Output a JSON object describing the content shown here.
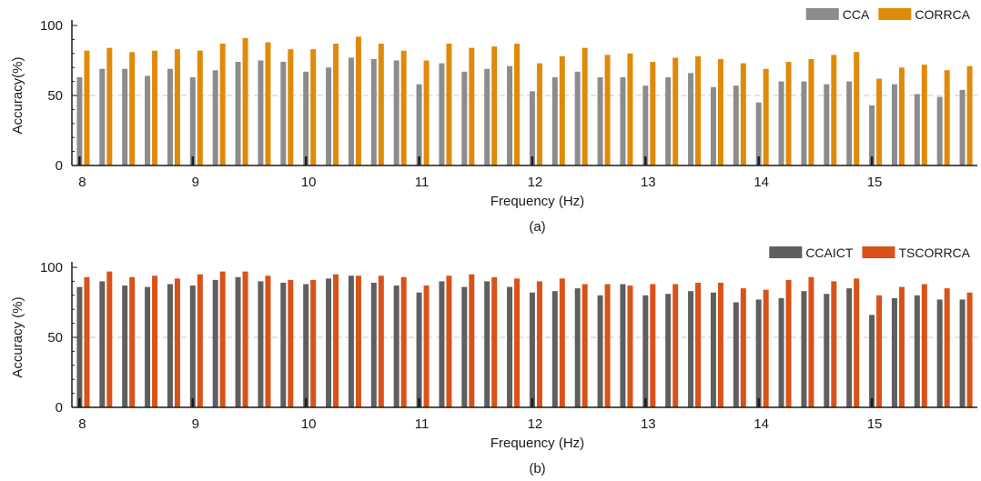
{
  "chart_data": [
    {
      "id": "a",
      "type": "bar",
      "caption": "(a)",
      "xlabel": "Frequency (Hz)",
      "ylabel": "Accuracy(%)",
      "ylim": [
        0,
        100
      ],
      "yticks": [
        0,
        50,
        100
      ],
      "gridlines": [
        50
      ],
      "xlim": [
        7.9,
        15.9
      ],
      "xticks": [
        8,
        9,
        10,
        11,
        12,
        13,
        14,
        15
      ],
      "legend_position": "top-right",
      "frequencies": [
        8,
        8.2,
        8.4,
        8.6,
        8.8,
        9,
        9.2,
        9.4,
        9.6,
        9.8,
        10,
        10.2,
        10.4,
        10.6,
        10.8,
        11,
        11.2,
        11.4,
        11.6,
        11.8,
        12,
        12.2,
        12.4,
        12.6,
        12.8,
        13,
        13.2,
        13.4,
        13.6,
        13.8,
        14,
        14.2,
        14.4,
        14.6,
        14.8,
        15,
        15.2,
        15.4,
        15.6,
        15.8
      ],
      "series": [
        {
          "name": "CCA",
          "color": "#8c8c8c",
          "values": [
            63,
            69,
            69,
            64,
            69,
            63,
            68,
            74,
            75,
            74,
            67,
            70,
            77,
            76,
            75,
            58,
            73,
            67,
            69,
            71,
            53,
            63,
            67,
            63,
            63,
            57,
            63,
            66,
            56,
            57,
            45,
            60,
            60,
            58,
            60,
            43,
            58,
            51,
            49,
            54
          ]
        },
        {
          "name": "CORRCA",
          "color": "#e08a0b",
          "values": [
            82,
            84,
            81,
            82,
            83,
            82,
            87,
            91,
            88,
            83,
            83,
            87,
            92,
            87,
            82,
            75,
            87,
            84,
            85,
            87,
            73,
            78,
            84,
            79,
            80,
            74,
            77,
            78,
            76,
            73,
            69,
            74,
            76,
            79,
            81,
            62,
            70,
            72,
            68,
            71
          ]
        }
      ]
    },
    {
      "id": "b",
      "type": "bar",
      "caption": "(b)",
      "xlabel": "Frequency (Hz)",
      "ylabel": "Accuracy (%)",
      "ylim": [
        0,
        100
      ],
      "yticks": [
        0,
        50,
        100
      ],
      "gridlines": [
        50
      ],
      "xlim": [
        7.9,
        15.9
      ],
      "xticks": [
        8,
        9,
        10,
        11,
        12,
        13,
        14,
        15
      ],
      "legend_position": "top-right",
      "frequencies": [
        8,
        8.2,
        8.4,
        8.6,
        8.8,
        9,
        9.2,
        9.4,
        9.6,
        9.8,
        10,
        10.2,
        10.4,
        10.6,
        10.8,
        11,
        11.2,
        11.4,
        11.6,
        11.8,
        12,
        12.2,
        12.4,
        12.6,
        12.8,
        13,
        13.2,
        13.4,
        13.6,
        13.8,
        14,
        14.2,
        14.4,
        14.6,
        14.8,
        15,
        15.2,
        15.4,
        15.6,
        15.8
      ],
      "series": [
        {
          "name": "CCAICT",
          "color": "#5f5f5f",
          "values": [
            86,
            90,
            87,
            86,
            88,
            87,
            91,
            93,
            90,
            89,
            88,
            92,
            94,
            89,
            87,
            82,
            90,
            86,
            90,
            86,
            82,
            83,
            85,
            80,
            88,
            80,
            81,
            83,
            82,
            75,
            77,
            78,
            83,
            81,
            85,
            66,
            78,
            80,
            77,
            77
          ]
        },
        {
          "name": "TSCORRCA",
          "color": "#d95218",
          "values": [
            93,
            97,
            93,
            94,
            92,
            95,
            97,
            97,
            94,
            91,
            91,
            95,
            94,
            94,
            93,
            87,
            94,
            95,
            93,
            92,
            90,
            92,
            88,
            88,
            87,
            88,
            88,
            89,
            89,
            85,
            84,
            91,
            93,
            90,
            92,
            80,
            86,
            88,
            85,
            82
          ]
        }
      ]
    }
  ]
}
